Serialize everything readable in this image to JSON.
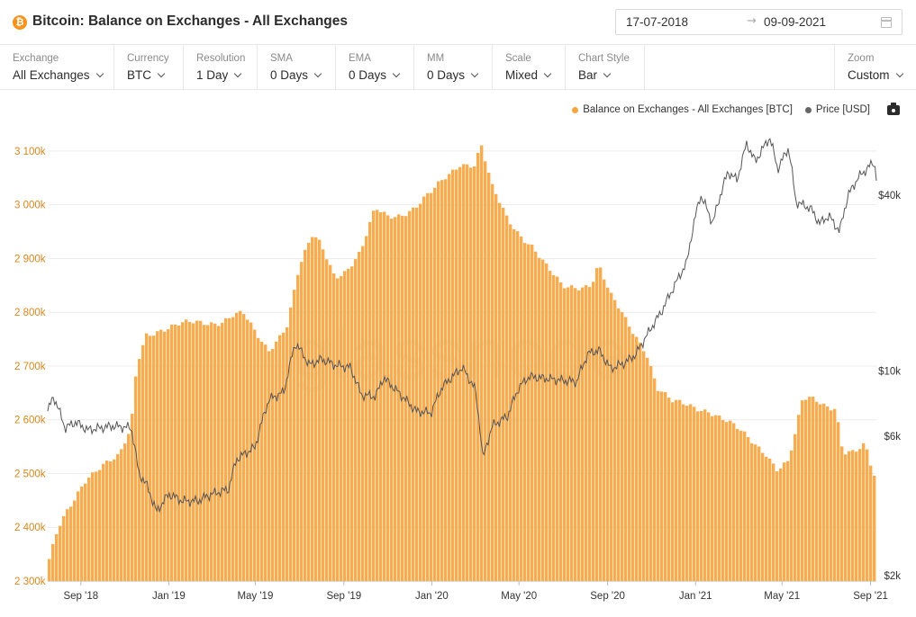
{
  "header": {
    "title": "Bitcoin: Balance on Exchanges - All Exchanges",
    "coin_icon": "bitcoin-icon",
    "date_start": "17-07-2018",
    "date_end": "09-09-2021",
    "date_arrow": "→"
  },
  "controls": [
    {
      "key": "exchange",
      "label": "Exchange",
      "value": "All Exchanges"
    },
    {
      "key": "currency",
      "label": "Currency",
      "value": "BTC"
    },
    {
      "key": "resolution",
      "label": "Resolution",
      "value": "1 Day"
    },
    {
      "key": "sma",
      "label": "SMA",
      "value": "0 Days"
    },
    {
      "key": "ema",
      "label": "EMA",
      "value": "0 Days"
    },
    {
      "key": "mm",
      "label": "MM",
      "value": "0 Days"
    },
    {
      "key": "scale",
      "label": "Scale",
      "value": "Mixed"
    },
    {
      "key": "chart-style",
      "label": "Chart Style",
      "value": "Bar"
    },
    {
      "key": "zoom",
      "label": "Zoom",
      "value": "Custom"
    }
  ],
  "legend": [
    {
      "label": "Balance on Exchanges - All Exchanges [BTC]",
      "color": "#f7a541"
    },
    {
      "label": "Price [USD]",
      "color": "#666666"
    }
  ],
  "watermark": "glassnode",
  "chart_data": {
    "type": "bar",
    "title": "Bitcoin: Balance on Exchanges - All Exchanges",
    "x_range": [
      "2018-07-17",
      "2021-09-09"
    ],
    "x_ticks": [
      "Sep '18",
      "Jan '19",
      "May '19",
      "Sep '19",
      "Jan '20",
      "May '20",
      "Sep '20",
      "Jan '21",
      "May '21",
      "Sep '21"
    ],
    "y_left_ticks": [
      "2 300k",
      "2 400k",
      "2 500k",
      "2 600k",
      "2 700k",
      "2 800k",
      "2 900k",
      "3 000k",
      "3 100k"
    ],
    "y_left_range": [
      2300000,
      3130000
    ],
    "y_right_ticks": [
      "$2k",
      "$6k",
      "$10k",
      "$40k"
    ],
    "y_right_scale": "log",
    "series": [
      {
        "name": "Balance on Exchanges - All Exchanges [BTC]",
        "type": "bar",
        "color": "#f7a541",
        "axis": "left",
        "points": [
          [
            "2018-07-17",
            2330000
          ],
          [
            "2018-08-01",
            2395000
          ],
          [
            "2018-08-20",
            2440000
          ],
          [
            "2018-09-10",
            2495000
          ],
          [
            "2018-10-01",
            2520000
          ],
          [
            "2018-10-25",
            2530000
          ],
          [
            "2018-11-10",
            2580000
          ],
          [
            "2018-11-18",
            2700000
          ],
          [
            "2018-12-01",
            2760000
          ],
          [
            "2018-12-20",
            2770000
          ],
          [
            "2019-01-15",
            2775000
          ],
          [
            "2019-02-15",
            2780000
          ],
          [
            "2019-03-15",
            2785000
          ],
          [
            "2019-04-01",
            2795000
          ],
          [
            "2019-04-15",
            2795000
          ],
          [
            "2019-05-01",
            2760000
          ],
          [
            "2019-05-20",
            2730000
          ],
          [
            "2019-06-15",
            2780000
          ],
          [
            "2019-07-01",
            2880000
          ],
          [
            "2019-07-20",
            2940000
          ],
          [
            "2019-08-01",
            2925000
          ],
          [
            "2019-08-20",
            2870000
          ],
          [
            "2019-09-05",
            2880000
          ],
          [
            "2019-09-25",
            2910000
          ],
          [
            "2019-10-15",
            2990000
          ],
          [
            "2019-11-01",
            2980000
          ],
          [
            "2019-11-20",
            2985000
          ],
          [
            "2019-12-10",
            2995000
          ],
          [
            "2020-01-01",
            3020000
          ],
          [
            "2020-01-20",
            3050000
          ],
          [
            "2020-02-10",
            3080000
          ],
          [
            "2020-03-01",
            3075000
          ],
          [
            "2020-03-10",
            3110000
          ],
          [
            "2020-03-25",
            3030000
          ],
          [
            "2020-04-15",
            2975000
          ],
          [
            "2020-05-01",
            2950000
          ],
          [
            "2020-05-20",
            2925000
          ],
          [
            "2020-06-10",
            2880000
          ],
          [
            "2020-07-01",
            2845000
          ],
          [
            "2020-07-25",
            2850000
          ],
          [
            "2020-08-10",
            2855000
          ],
          [
            "2020-08-20",
            2890000
          ],
          [
            "2020-09-05",
            2830000
          ],
          [
            "2020-10-01",
            2775000
          ],
          [
            "2020-10-25",
            2730000
          ],
          [
            "2020-11-10",
            2660000
          ],
          [
            "2020-12-01",
            2630000
          ],
          [
            "2020-12-25",
            2625000
          ],
          [
            "2021-01-20",
            2620000
          ],
          [
            "2021-02-10",
            2600000
          ],
          [
            "2021-03-01",
            2580000
          ],
          [
            "2021-03-20",
            2560000
          ],
          [
            "2021-04-10",
            2540000
          ],
          [
            "2021-04-25",
            2510000
          ],
          [
            "2021-05-10",
            2520000
          ],
          [
            "2021-05-20",
            2570000
          ],
          [
            "2021-05-30",
            2635000
          ],
          [
            "2021-06-15",
            2640000
          ],
          [
            "2021-07-01",
            2630000
          ],
          [
            "2021-07-15",
            2625000
          ],
          [
            "2021-07-25",
            2540000
          ],
          [
            "2021-08-10",
            2535000
          ],
          [
            "2021-08-25",
            2550000
          ],
          [
            "2021-09-05",
            2500000
          ],
          [
            "2021-09-09",
            2490000
          ]
        ]
      },
      {
        "name": "Price [USD]",
        "type": "line",
        "color": "#555555",
        "axis": "right",
        "points": [
          [
            "2018-07-17",
            7300
          ],
          [
            "2018-07-25",
            8200
          ],
          [
            "2018-08-10",
            6400
          ],
          [
            "2018-08-25",
            6700
          ],
          [
            "2018-09-10",
            6300
          ],
          [
            "2018-10-15",
            6500
          ],
          [
            "2018-11-10",
            6400
          ],
          [
            "2018-11-20",
            4500
          ],
          [
            "2018-12-01",
            4100
          ],
          [
            "2018-12-15",
            3300
          ],
          [
            "2019-01-01",
            3800
          ],
          [
            "2019-01-20",
            3600
          ],
          [
            "2019-02-10",
            3600
          ],
          [
            "2019-03-01",
            3800
          ],
          [
            "2019-03-25",
            3950
          ],
          [
            "2019-04-05",
            5000
          ],
          [
            "2019-05-01",
            5500
          ],
          [
            "2019-05-20",
            8000
          ],
          [
            "2019-06-10",
            8500
          ],
          [
            "2019-06-26",
            12500
          ],
          [
            "2019-07-15",
            10500
          ],
          [
            "2019-08-01",
            11000
          ],
          [
            "2019-08-20",
            10500
          ],
          [
            "2019-09-10",
            10300
          ],
          [
            "2019-09-25",
            8300
          ],
          [
            "2019-10-15",
            8200
          ],
          [
            "2019-10-26",
            9500
          ],
          [
            "2019-11-15",
            8500
          ],
          [
            "2019-12-10",
            7300
          ],
          [
            "2019-12-31",
            7200
          ],
          [
            "2020-01-15",
            8800
          ],
          [
            "2020-02-12",
            10300
          ],
          [
            "2020-03-01",
            8700
          ],
          [
            "2020-03-12",
            5000
          ],
          [
            "2020-03-25",
            6500
          ],
          [
            "2020-04-15",
            7000
          ],
          [
            "2020-05-01",
            8800
          ],
          [
            "2020-05-15",
            9600
          ],
          [
            "2020-06-15",
            9400
          ],
          [
            "2020-07-20",
            9200
          ],
          [
            "2020-08-05",
            11500
          ],
          [
            "2020-08-20",
            11800
          ],
          [
            "2020-09-05",
            10200
          ],
          [
            "2020-09-25",
            10700
          ],
          [
            "2020-10-10",
            11400
          ],
          [
            "2020-10-25",
            13200
          ],
          [
            "2020-11-15",
            16000
          ],
          [
            "2020-12-01",
            19200
          ],
          [
            "2020-12-20",
            23500
          ],
          [
            "2021-01-08",
            40000
          ],
          [
            "2021-01-25",
            32000
          ],
          [
            "2021-02-15",
            48000
          ],
          [
            "2021-02-28",
            45000
          ],
          [
            "2021-03-13",
            60000
          ],
          [
            "2021-03-25",
            52000
          ],
          [
            "2021-04-14",
            63000
          ],
          [
            "2021-04-25",
            49000
          ],
          [
            "2021-05-10",
            58000
          ],
          [
            "2021-05-20",
            38000
          ],
          [
            "2021-06-10",
            36000
          ],
          [
            "2021-06-22",
            32000
          ],
          [
            "2021-07-05",
            34000
          ],
          [
            "2021-07-20",
            30000
          ],
          [
            "2021-08-01",
            40000
          ],
          [
            "2021-08-15",
            46000
          ],
          [
            "2021-09-06",
            52000
          ],
          [
            "2021-09-09",
            46000
          ]
        ]
      }
    ]
  }
}
